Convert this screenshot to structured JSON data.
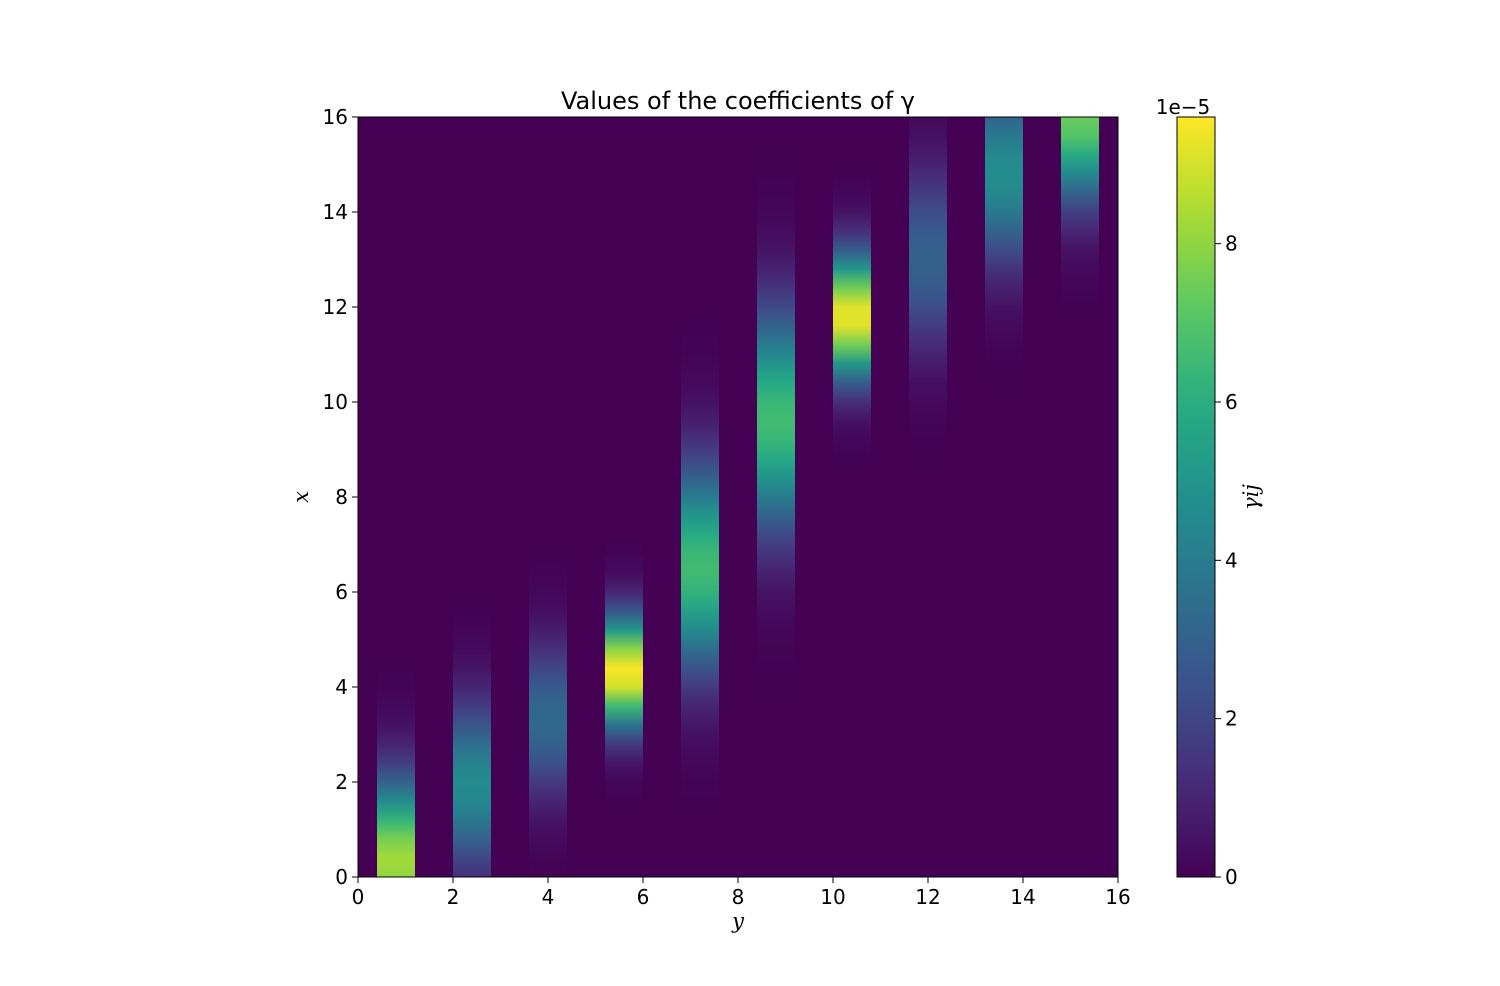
{
  "chart_data": {
    "type": "heatmap",
    "title": "Values of the coefficients of γ",
    "xlabel": "y",
    "ylabel": "x",
    "xlim": [
      0,
      16
    ],
    "ylim": [
      0,
      16
    ],
    "x_ticks": [
      "0",
      "2",
      "4",
      "6",
      "8",
      "10",
      "12",
      "14",
      "16"
    ],
    "y_ticks": [
      "0",
      "2",
      "4",
      "6",
      "8",
      "10",
      "12",
      "14",
      "16"
    ],
    "colorbar": {
      "label": "γij",
      "scale_label": "1e−5",
      "range": [
        0,
        9.6
      ],
      "ticks": [
        "0",
        "2",
        "4",
        "6",
        "8"
      ],
      "colormap": "viridis"
    },
    "background_value": 0,
    "columns": [
      {
        "y_start": 0.4,
        "y_end": 1.2,
        "peak_x": 0.3,
        "sigma_x": 1.2,
        "peak_value": 8.3
      },
      {
        "y_start": 2.0,
        "y_end": 2.8,
        "peak_x": 1.9,
        "sigma_x": 1.2,
        "peak_value": 4.6
      },
      {
        "y_start": 3.6,
        "y_end": 4.4,
        "peak_x": 3.3,
        "sigma_x": 1.1,
        "peak_value": 3.3
      },
      {
        "y_start": 5.2,
        "y_end": 6.0,
        "peak_x": 4.3,
        "sigma_x": 0.8,
        "peak_value": 9.6
      },
      {
        "y_start": 6.8,
        "y_end": 7.6,
        "peak_x": 6.5,
        "sigma_x": 1.5,
        "peak_value": 6.6
      },
      {
        "y_start": 8.4,
        "y_end": 9.2,
        "peak_x": 9.6,
        "sigma_x": 1.6,
        "peak_value": 6.6
      },
      {
        "y_start": 10.0,
        "y_end": 10.8,
        "peak_x": 11.8,
        "sigma_x": 0.9,
        "peak_value": 9.4
      },
      {
        "y_start": 11.6,
        "y_end": 12.4,
        "peak_x": 13.0,
        "sigma_x": 1.3,
        "peak_value": 3.0
      },
      {
        "y_start": 13.2,
        "y_end": 14.0,
        "peak_x": 14.8,
        "sigma_x": 1.3,
        "peak_value": 4.7
      },
      {
        "y_start": 14.8,
        "y_end": 15.6,
        "peak_x": 16.0,
        "sigma_x": 1.2,
        "peak_value": 7.4
      }
    ]
  }
}
